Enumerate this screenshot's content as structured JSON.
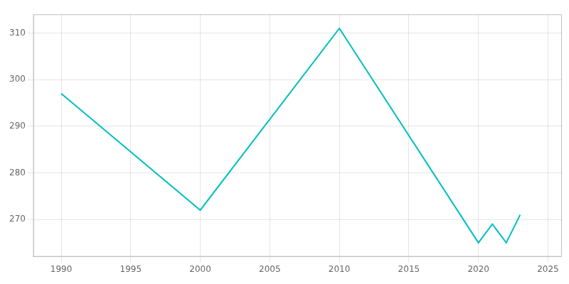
{
  "chart_data": {
    "type": "line",
    "x": [
      1990,
      2000,
      2010,
      2020,
      2021,
      2022,
      2023
    ],
    "values": [
      297,
      272,
      311,
      265,
      269,
      265,
      271
    ],
    "color": "#00BFBF",
    "xlim": [
      1988,
      2026
    ],
    "ylim": [
      262,
      314
    ],
    "xticks": [
      1990,
      1995,
      2000,
      2005,
      2010,
      2015,
      2020,
      2025
    ],
    "yticks": [
      270,
      280,
      290,
      300,
      310
    ],
    "grid": true
  }
}
